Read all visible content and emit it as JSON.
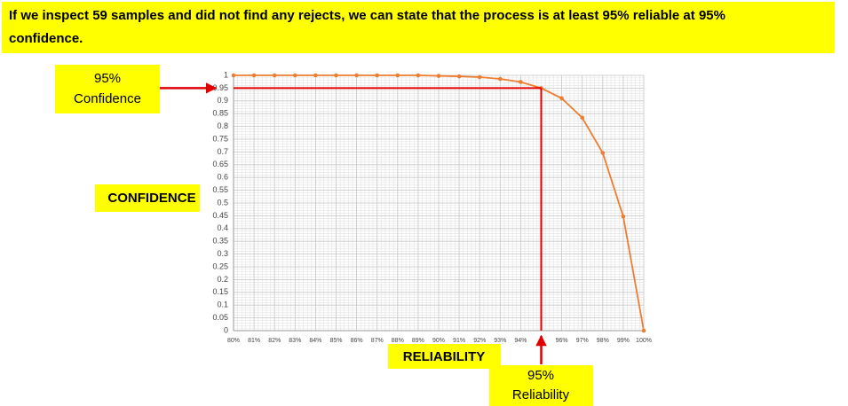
{
  "chart_data": {
    "type": "line",
    "title": [
      "If we inspect 59 samples and did not find any rejects, we can state that the process is at least 95% reliable at 95%",
      "confidence."
    ],
    "x_label": "RELIABILITY",
    "y_label": "CONFIDENCE",
    "confidence_note": [
      "95%",
      "Confidence"
    ],
    "reliability_note": [
      "95%",
      "Reliability"
    ],
    "reference_point": {
      "x": 95,
      "y": 0.95
    },
    "x": [
      80,
      81,
      82,
      83,
      84,
      85,
      86,
      87,
      88,
      89,
      90,
      91,
      92,
      93,
      94,
      95,
      96,
      97,
      98,
      99,
      100
    ],
    "series": [
      {
        "name": "Confidence",
        "color": "#ed7d31",
        "values": [
          1,
          1,
          1,
          1,
          1,
          1,
          1,
          1,
          1,
          1,
          0.998,
          0.996,
          0.993,
          0.986,
          0.974,
          0.95,
          0.91,
          0.834,
          0.696,
          0.447,
          0
        ]
      }
    ],
    "xlim": [
      80,
      100
    ],
    "xticks": [
      {
        "value": 80,
        "label": "80%"
      },
      {
        "value": 81,
        "label": "81%"
      },
      {
        "value": 82,
        "label": "82%"
      },
      {
        "value": 83,
        "label": "83%"
      },
      {
        "value": 84,
        "label": "84%"
      },
      {
        "value": 85,
        "label": "85%"
      },
      {
        "value": 86,
        "label": "86%"
      },
      {
        "value": 87,
        "label": "87%"
      },
      {
        "value": 88,
        "label": "88%"
      },
      {
        "value": 89,
        "label": "89%"
      },
      {
        "value": 90,
        "label": "90%"
      },
      {
        "value": 91,
        "label": "91%"
      },
      {
        "value": 92,
        "label": "92%"
      },
      {
        "value": 93,
        "label": "93%"
      },
      {
        "value": 94,
        "label": "94%"
      },
      {
        "value": 96,
        "label": "96%"
      },
      {
        "value": 97,
        "label": "97%"
      },
      {
        "value": 98,
        "label": "98%"
      },
      {
        "value": 99,
        "label": "99%"
      },
      {
        "value": 100,
        "label": "100%"
      }
    ],
    "ylim": [
      0,
      1
    ],
    "yticks": [
      0,
      0.05,
      0.1,
      0.15,
      0.2,
      0.25,
      0.3,
      0.35,
      0.4,
      0.45,
      0.5,
      0.55,
      0.6,
      0.65,
      0.7,
      0.75,
      0.8,
      0.85,
      0.9,
      0.95,
      1
    ],
    "grid": true
  }
}
